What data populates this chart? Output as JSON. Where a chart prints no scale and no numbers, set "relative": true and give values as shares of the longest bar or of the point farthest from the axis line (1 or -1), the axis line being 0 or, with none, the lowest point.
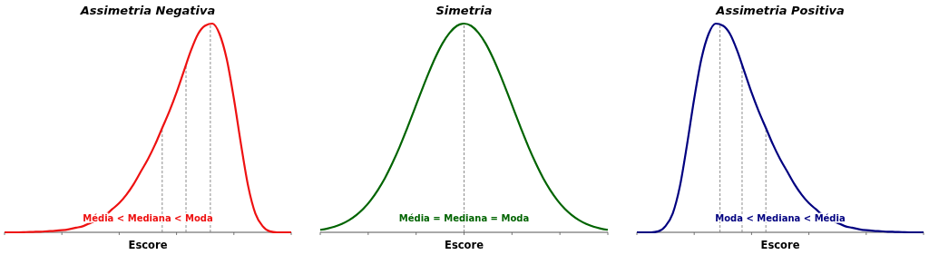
{
  "chart_data": [
    {
      "type": "line",
      "title": "Assimetria Negativa",
      "xlabel": "Escore",
      "relative": true,
      "categories": [
        null,
        null,
        null,
        null,
        null,
        null,
        null,
        null,
        null,
        null,
        null,
        null,
        null,
        null,
        null,
        null,
        null,
        null,
        null,
        null,
        null,
        null,
        null,
        null,
        null,
        null,
        null,
        null,
        null,
        null,
        null,
        null,
        null,
        null,
        null,
        null,
        null,
        null,
        null,
        null,
        null
      ],
      "series": [
        {
          "color": "#ee1111",
          "values": [
            0,
            0,
            0,
            0.001,
            0.002,
            0.003,
            0.005,
            0.007,
            0.01,
            0.015,
            0.022,
            0.03,
            0.045,
            0.06,
            0.08,
            0.11,
            0.14,
            0.18,
            0.23,
            0.29,
            0.35,
            0.42,
            0.5,
            0.58,
            0.67,
            0.77,
            0.87,
            0.95,
            0.99,
            1,
            0.95,
            0.83,
            0.64,
            0.42,
            0.22,
            0.09,
            0.03,
            0.005,
            0,
            0,
            0
          ]
        }
      ],
      "annotations": [
        "Média < Mediana < Moda"
      ]
    },
    {
      "type": "line",
      "title": "Simetria",
      "xlabel": "Escore",
      "relative": true,
      "categories": [
        null,
        null,
        null,
        null,
        null,
        null,
        null,
        null,
        null,
        null,
        null,
        null,
        null,
        null,
        null,
        null,
        null,
        null,
        null,
        null,
        null,
        null,
        null,
        null,
        null,
        null,
        null,
        null,
        null,
        null,
        null,
        null,
        null,
        null,
        null,
        null,
        null,
        null,
        null,
        null,
        null
      ],
      "series": [
        {
          "color": "#006400",
          "values": [
            0.012,
            0.018,
            0.027,
            0.04,
            0.058,
            0.082,
            0.113,
            0.153,
            0.202,
            0.26,
            0.329,
            0.406,
            0.491,
            0.58,
            0.67,
            0.757,
            0.837,
            0.905,
            0.956,
            0.989,
            1,
            0.989,
            0.956,
            0.905,
            0.837,
            0.757,
            0.67,
            0.58,
            0.491,
            0.406,
            0.329,
            0.26,
            0.202,
            0.153,
            0.113,
            0.082,
            0.058,
            0.04,
            0.027,
            0.018,
            0.012
          ]
        }
      ],
      "annotations": [
        "Média = Mediana = Moda"
      ]
    },
    {
      "type": "line",
      "title": "Assimetria Positiva",
      "xlabel": "Escore",
      "relative": true,
      "categories": [
        null,
        null,
        null,
        null,
        null,
        null,
        null,
        null,
        null,
        null,
        null,
        null,
        null,
        null,
        null,
        null,
        null,
        null,
        null,
        null,
        null,
        null,
        null,
        null,
        null,
        null,
        null,
        null,
        null,
        null,
        null,
        null,
        null,
        null,
        null,
        null,
        null,
        null,
        null,
        null,
        null
      ],
      "series": [
        {
          "color": "#000080",
          "values": [
            0,
            0,
            0,
            0.005,
            0.03,
            0.09,
            0.22,
            0.42,
            0.64,
            0.83,
            0.95,
            1,
            0.99,
            0.95,
            0.87,
            0.77,
            0.67,
            0.58,
            0.5,
            0.42,
            0.35,
            0.29,
            0.23,
            0.18,
            0.14,
            0.11,
            0.08,
            0.06,
            0.045,
            0.03,
            0.022,
            0.015,
            0.01,
            0.007,
            0.005,
            0.003,
            0.002,
            0.001,
            0,
            0,
            0
          ]
        }
      ],
      "annotations": [
        "Moda < Mediana < Média"
      ]
    }
  ]
}
